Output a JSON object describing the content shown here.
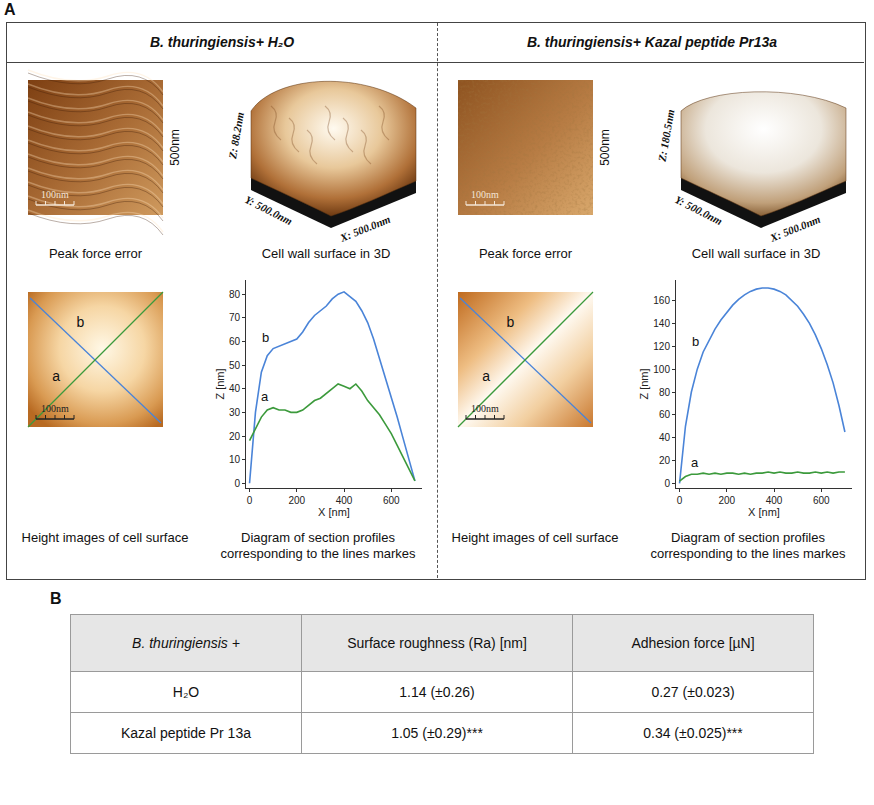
{
  "panel_A": {
    "letter": "A",
    "columns": [
      {
        "title": "B. thuringiensis+ H₂O",
        "peak_force_label": "Peak force error",
        "scale_bar": "100nm",
        "image_size": "500nm",
        "surface_label": "Cell wall surface in 3D",
        "surface_axes": {
          "z": "Z: 88.2nm",
          "y": "Y: 500.0nm",
          "x": "X: 500.0nm"
        },
        "height_label": "Height images of cell surface",
        "line_labels": {
          "blue": "b",
          "green": "a"
        },
        "profile_label": "Diagram of section profiles corresponding to the lines markes"
      },
      {
        "title": "B. thuringiensis+ Kazal peptide Pr13a",
        "peak_force_label": "Peak force error",
        "scale_bar": "100nm",
        "image_size": "500nm",
        "surface_label": "Cell wall surface in 3D",
        "surface_axes": {
          "z": "Z: 180.5nm",
          "y": "Y: 500.0nm",
          "x": "X: 500.0nm"
        },
        "height_label": "Height images of cell surface",
        "line_labels": {
          "blue": "b",
          "green": "a"
        },
        "profile_label": "Diagram of section profiles corresponding to the lines markes"
      }
    ]
  },
  "chart_data": [
    {
      "type": "line",
      "xlabel": "X [nm]",
      "ylabel": "Z [nm]",
      "xlim": [
        -15,
        730
      ],
      "xticks": [
        0,
        200,
        400,
        600
      ],
      "ylim": [
        -2,
        86
      ],
      "yticks": [
        0,
        10,
        20,
        30,
        40,
        50,
        60,
        70,
        80
      ],
      "grid": false,
      "x": [
        0,
        25,
        50,
        75,
        100,
        125,
        150,
        175,
        200,
        225,
        250,
        275,
        300,
        325,
        350,
        375,
        400,
        425,
        450,
        475,
        500,
        525,
        550,
        575,
        600,
        625,
        650,
        675,
        700
      ],
      "series": [
        {
          "name": "b",
          "color": "#4a84d8",
          "values": [
            0,
            30,
            47,
            54,
            57,
            58,
            59,
            60,
            61,
            64,
            68,
            71,
            73,
            75,
            78,
            80,
            81,
            79,
            77,
            73,
            68,
            61,
            53,
            45,
            36,
            28,
            19,
            10,
            1
          ]
        },
        {
          "name": "a",
          "color": "#3c9a3c",
          "values": [
            18,
            23,
            28,
            31,
            32,
            31,
            31,
            30,
            30,
            31,
            33,
            35,
            36,
            38,
            40,
            42,
            41,
            40,
            42,
            39,
            35,
            32,
            29,
            25,
            21,
            16,
            11,
            6,
            1
          ]
        }
      ]
    },
    {
      "type": "line",
      "xlabel": "X [nm]",
      "ylabel": "Z [nm]",
      "xlim": [
        -15,
        730
      ],
      "xticks": [
        0,
        200,
        400,
        600
      ],
      "ylim": [
        -4,
        178
      ],
      "yticks": [
        0,
        20,
        40,
        60,
        80,
        100,
        120,
        140,
        160
      ],
      "grid": false,
      "x": [
        0,
        25,
        50,
        75,
        100,
        125,
        150,
        175,
        200,
        225,
        250,
        275,
        300,
        325,
        350,
        375,
        400,
        425,
        450,
        475,
        500,
        525,
        550,
        575,
        600,
        625,
        650,
        675,
        700
      ],
      "series": [
        {
          "name": "b",
          "color": "#4a84d8",
          "values": [
            0,
            50,
            80,
            100,
            115,
            125,
            135,
            143,
            150,
            156,
            161,
            165,
            168,
            170,
            171,
            171,
            170,
            168,
            165,
            160,
            155,
            148,
            140,
            130,
            118,
            104,
            88,
            68,
            45
          ]
        },
        {
          "name": "a",
          "color": "#3c9a3c",
          "values": [
            2,
            6,
            8,
            8,
            9,
            8,
            9,
            8,
            9,
            9,
            8,
            9,
            8,
            9,
            9,
            10,
            9,
            10,
            9,
            9,
            10,
            9,
            9,
            10,
            9,
            10,
            9,
            10,
            10
          ]
        }
      ]
    }
  ],
  "panel_B": {
    "letter": "B",
    "table": {
      "header": [
        "B. thuringiensis +",
        "Surface roughness (Ra) [nm]",
        "Adhesion force [µN]"
      ],
      "rows": [
        [
          "H₂O",
          "1.14 (±0.26)",
          "0.27 (±0.023)"
        ],
        [
          "Kazal peptide Pr 13a",
          "1.05 (±0.29)***",
          "0.34 (±0.025)***"
        ]
      ]
    }
  }
}
